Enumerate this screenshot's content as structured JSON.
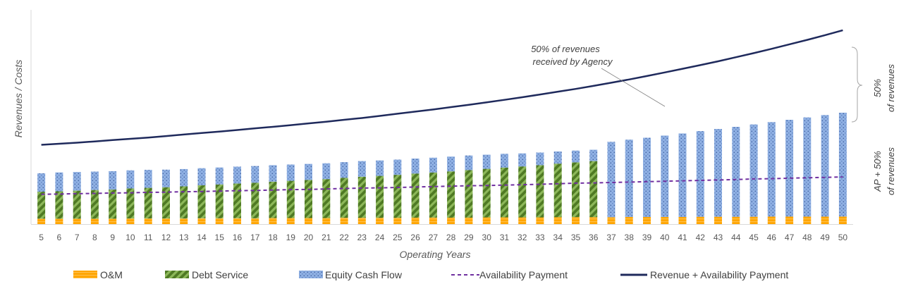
{
  "chart_data": {
    "type": "bar",
    "stacked": true,
    "title": "",
    "xlabel": "Operating Years",
    "ylabel": "Revenues / Costs",
    "categories": [
      "5",
      "6",
      "7",
      "8",
      "9",
      "10",
      "11",
      "12",
      "13",
      "14",
      "15",
      "16",
      "17",
      "18",
      "19",
      "20",
      "21",
      "22",
      "23",
      "24",
      "25",
      "26",
      "27",
      "28",
      "29",
      "30",
      "31",
      "32",
      "33",
      "34",
      "35",
      "36",
      "37",
      "38",
      "39",
      "40",
      "41",
      "42",
      "43",
      "44",
      "45",
      "46",
      "47",
      "48",
      "49",
      "50"
    ],
    "ylim": [
      0,
      100
    ],
    "grid": false,
    "legend_position": "bottom",
    "series": [
      {
        "name": "O&M",
        "kind": "bar",
        "values": [
          2.5,
          2.5,
          2.5,
          2.5,
          2.5,
          2.6,
          2.6,
          2.6,
          2.6,
          2.7,
          2.7,
          2.7,
          2.7,
          2.8,
          2.8,
          2.8,
          2.8,
          2.9,
          2.9,
          2.9,
          2.9,
          3.0,
          3.0,
          3.0,
          3.0,
          3.1,
          3.1,
          3.1,
          3.1,
          3.2,
          3.2,
          3.2,
          3.2,
          3.3,
          3.3,
          3.3,
          3.3,
          3.4,
          3.4,
          3.4,
          3.4,
          3.5,
          3.5,
          3.5,
          3.5,
          3.5
        ]
      },
      {
        "name": "Debt Service",
        "kind": "bar",
        "values": [
          12.6,
          12.8,
          13.1,
          13.4,
          13.6,
          14.0,
          14.3,
          14.6,
          15.0,
          15.4,
          15.8,
          16.2,
          16.6,
          17.0,
          17.4,
          17.8,
          18.2,
          18.7,
          19.2,
          19.6,
          20.1,
          20.6,
          21.1,
          21.6,
          22.2,
          22.7,
          23.3,
          23.8,
          24.4,
          25.0,
          25.6,
          26.2,
          0,
          0,
          0,
          0,
          0,
          0,
          0,
          0,
          0,
          0,
          0,
          0,
          0,
          0
        ]
      },
      {
        "name": "Equity Cash Flow",
        "kind": "bar",
        "values": [
          8.6,
          8.8,
          8.7,
          8.6,
          8.6,
          8.5,
          8.4,
          8.2,
          8.1,
          8.0,
          7.9,
          7.9,
          7.8,
          7.7,
          7.6,
          7.5,
          7.4,
          7.3,
          7.3,
          7.2,
          7.1,
          7.0,
          6.9,
          6.9,
          6.8,
          6.6,
          6.4,
          6.1,
          5.9,
          5.7,
          5.5,
          5.3,
          35.2,
          36.1,
          37.0,
          38.0,
          39.0,
          40.0,
          41.0,
          42.0,
          43.1,
          44.1,
          45.2,
          46.3,
          47.4,
          48.5
        ]
      },
      {
        "name": "Availability Payment",
        "kind": "line",
        "values": [
          13.9,
          14.0,
          14.2,
          14.3,
          14.5,
          14.6,
          14.8,
          14.9,
          15.1,
          15.2,
          15.4,
          15.6,
          15.7,
          15.9,
          16.1,
          16.2,
          16.4,
          16.6,
          16.8,
          16.9,
          17.1,
          17.3,
          17.5,
          17.7,
          17.9,
          18.0,
          18.2,
          18.4,
          18.6,
          18.8,
          19.1,
          19.2,
          19.4,
          19.6,
          19.8,
          20.0,
          20.2,
          20.4,
          20.6,
          20.8,
          21.1,
          21.2,
          21.4,
          21.6,
          21.8,
          22.0
        ]
      },
      {
        "name": "Revenue + Availability Payment",
        "kind": "line",
        "values": [
          37.0,
          37.5,
          38.0,
          38.6,
          39.2,
          39.8,
          40.4,
          41.1,
          41.8,
          42.5,
          43.2,
          43.9,
          44.7,
          45.4,
          46.2,
          47.0,
          47.8,
          48.7,
          49.5,
          50.5,
          51.5,
          52.5,
          53.5,
          54.6,
          55.7,
          56.8,
          58.0,
          59.2,
          60.5,
          61.8,
          63.1,
          64.5,
          66.0,
          67.5,
          69.1,
          70.8,
          72.5,
          74.2,
          76.0,
          77.9,
          79.8,
          81.8,
          83.9,
          86.0,
          88.2,
          90.5
        ]
      }
    ],
    "annotations": [
      {
        "lines": [
          "50% of revenues",
          "received by Agency"
        ]
      },
      {
        "lines": [
          "50%",
          "of revenues"
        ]
      },
      {
        "lines": [
          "AP + 50%",
          "of revenues"
        ]
      }
    ],
    "colors": {
      "om": "#ffa500",
      "debt": "#6e9a3c",
      "equity": "#8fb0e3",
      "availability": "#7030a0",
      "revenue": "#1f2a5c",
      "text": "#595959",
      "axis": "#d9d9d9"
    }
  }
}
